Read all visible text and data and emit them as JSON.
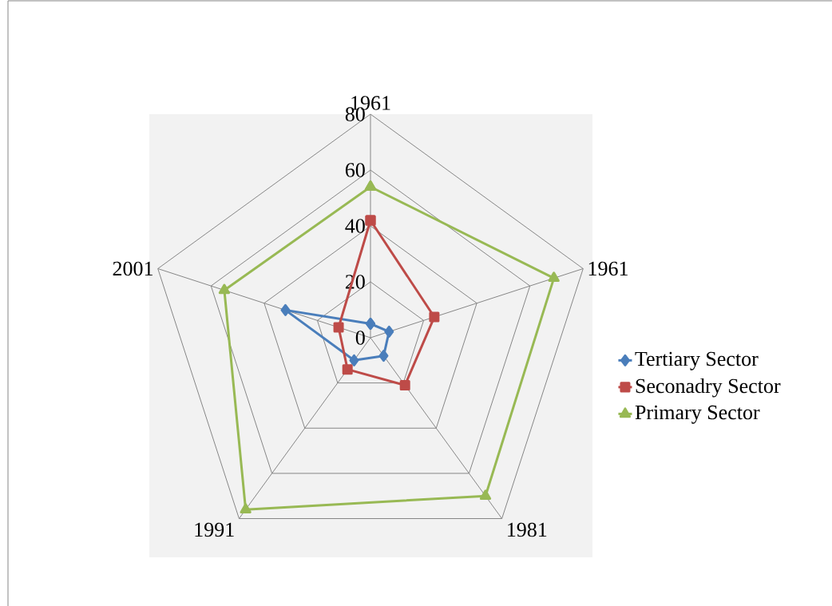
{
  "chart_data": {
    "type": "radar",
    "categories": [
      "1961",
      "1961",
      "1981",
      "1991",
      "2001"
    ],
    "ylim": [
      0,
      80
    ],
    "yticks": [
      0,
      20,
      40,
      60,
      80
    ],
    "grid": true,
    "legend": "right",
    "series": [
      {
        "name": "Tertiary Sector",
        "color": "#4a7ebb",
        "marker": "diamond",
        "values": [
          5,
          7,
          8,
          10,
          32
        ]
      },
      {
        "name": "Seconadry Sector",
        "color": "#be4b48",
        "marker": "square",
        "values": [
          42,
          24,
          21,
          14,
          12
        ]
      },
      {
        "name": "Primary Sector",
        "color": "#98b954",
        "marker": "triangle",
        "values": [
          54,
          69,
          70,
          76,
          55
        ]
      }
    ]
  }
}
